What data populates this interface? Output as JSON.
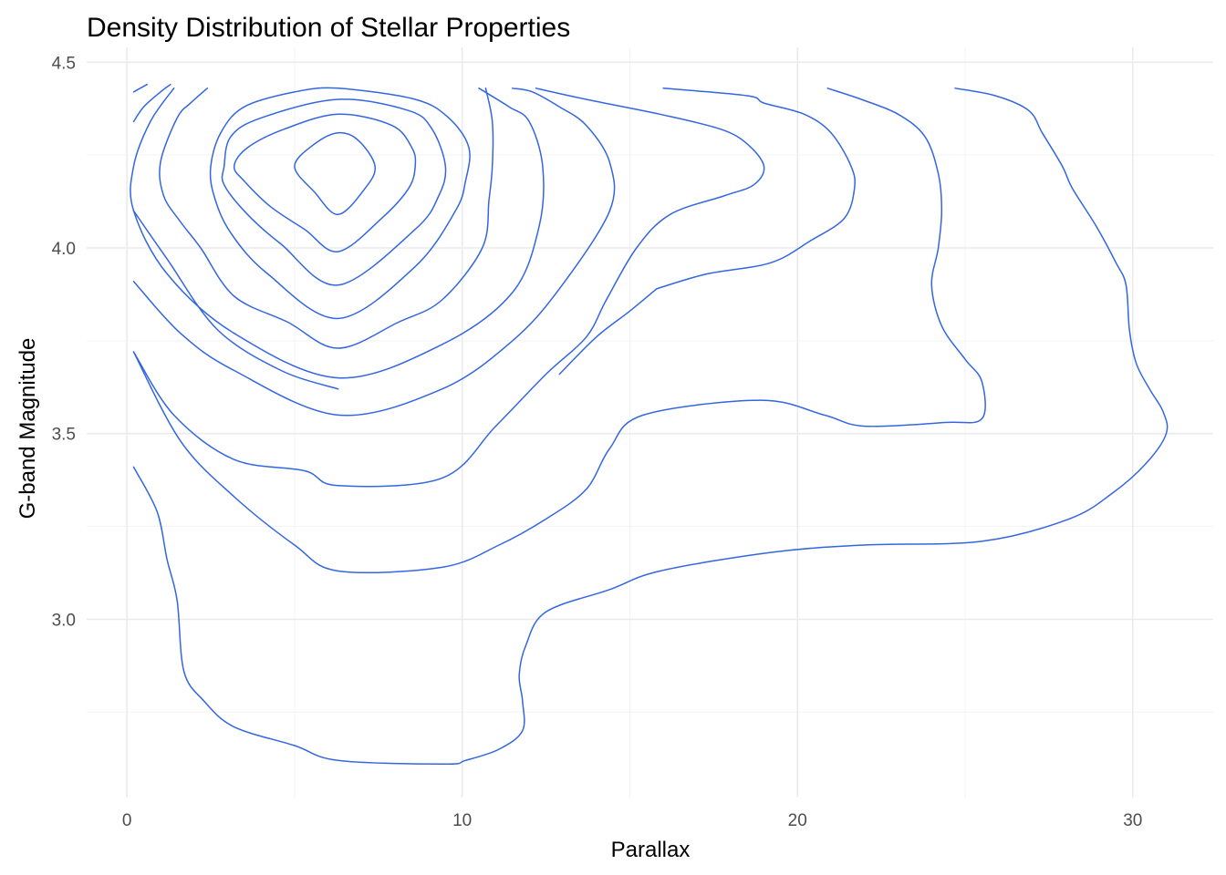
{
  "chart_data": {
    "type": "contour",
    "title": "Density Distribution of Stellar Properties",
    "xlabel": "Parallax",
    "ylabel": "G-band Magnitude",
    "xlim": [
      -1.2,
      32.4
    ],
    "ylim": [
      2.52,
      4.54
    ],
    "x_ticks": [
      0,
      10,
      20,
      30
    ],
    "y_ticks": [
      3.0,
      3.5,
      4.0,
      4.5
    ],
    "x_tick_labels": [
      "0",
      "10",
      "20",
      "30"
    ],
    "y_tick_labels": [
      "3.0",
      "3.5",
      "4.0",
      "4.5"
    ],
    "x_minor": [
      5,
      15,
      25
    ],
    "y_minor": [
      2.75,
      3.25,
      3.75,
      4.25
    ],
    "grid": true,
    "line_color": "#3366e0",
    "series": [
      {
        "closed": true,
        "points": [
          [
            5.0,
            4.22
          ],
          [
            5.6,
            4.28
          ],
          [
            6.3,
            4.31
          ],
          [
            6.9,
            4.29
          ],
          [
            7.4,
            4.22
          ],
          [
            7.1,
            4.16
          ],
          [
            6.3,
            4.09
          ],
          [
            5.6,
            4.15
          ]
        ]
      },
      {
        "closed": true,
        "points": [
          [
            3.2,
            4.22
          ],
          [
            3.6,
            4.27
          ],
          [
            4.7,
            4.32
          ],
          [
            6.3,
            4.36
          ],
          [
            7.9,
            4.33
          ],
          [
            8.5,
            4.27
          ],
          [
            8.6,
            4.22
          ],
          [
            8.4,
            4.16
          ],
          [
            7.6,
            4.08
          ],
          [
            6.3,
            3.99
          ],
          [
            5.3,
            4.05
          ],
          [
            4.3,
            4.11
          ],
          [
            3.5,
            4.18
          ]
        ]
      },
      {
        "closed": true,
        "points": [
          [
            2.9,
            4.22
          ],
          [
            3.1,
            4.3
          ],
          [
            4.0,
            4.35
          ],
          [
            6.3,
            4.4
          ],
          [
            8.4,
            4.37
          ],
          [
            9.1,
            4.32
          ],
          [
            9.5,
            4.22
          ],
          [
            9.3,
            4.14
          ],
          [
            8.6,
            4.05
          ],
          [
            6.3,
            3.9
          ],
          [
            4.6,
            4.01
          ],
          [
            3.6,
            4.09
          ],
          [
            2.9,
            4.17
          ]
        ]
      },
      {
        "closed": true,
        "points": [
          [
            2.5,
            4.22
          ],
          [
            2.8,
            4.31
          ],
          [
            3.5,
            4.38
          ],
          [
            5.0,
            4.42
          ],
          [
            6.3,
            4.43
          ],
          [
            8.6,
            4.4
          ],
          [
            9.6,
            4.35
          ],
          [
            10.2,
            4.27
          ],
          [
            10.1,
            4.18
          ],
          [
            9.8,
            4.1
          ],
          [
            8.6,
            3.95
          ],
          [
            6.3,
            3.81
          ],
          [
            4.2,
            3.93
          ],
          [
            3.1,
            4.04
          ],
          [
            2.6,
            4.14
          ]
        ]
      },
      {
        "closed": false,
        "points": [
          [
            2.4,
            4.43
          ],
          [
            1.9,
            4.39
          ],
          [
            1.5,
            4.35
          ],
          [
            1.0,
            4.23
          ],
          [
            1.1,
            4.14
          ],
          [
            1.6,
            4.07
          ],
          [
            2.2,
            4.0
          ],
          [
            3.2,
            3.87
          ],
          [
            4.8,
            3.8
          ],
          [
            6.3,
            3.73
          ],
          [
            8.1,
            3.8
          ],
          [
            9.4,
            3.86
          ],
          [
            10.6,
            4.0
          ],
          [
            10.8,
            4.13
          ],
          [
            10.9,
            4.22
          ],
          [
            10.9,
            4.34
          ],
          [
            10.7,
            4.43
          ]
        ]
      },
      {
        "closed": false,
        "points": [
          [
            1.4,
            4.43
          ],
          [
            0.7,
            4.34
          ],
          [
            0.2,
            4.22
          ],
          [
            0.2,
            4.1
          ],
          [
            1.2,
            3.93
          ],
          [
            3.2,
            3.77
          ],
          [
            6.3,
            3.65
          ],
          [
            9.4,
            3.74
          ],
          [
            11.5,
            3.88
          ],
          [
            12.3,
            4.06
          ],
          [
            12.4,
            4.22
          ],
          [
            12.0,
            4.34
          ],
          [
            11.4,
            4.38
          ],
          [
            10.5,
            4.43
          ]
        ]
      },
      {
        "closed": false,
        "points": [
          [
            0.6,
            4.44
          ],
          [
            0.2,
            4.42
          ]
        ]
      },
      {
        "closed": false,
        "points": [
          [
            0.2,
            4.34
          ],
          [
            0.5,
            4.38
          ],
          [
            1.0,
            4.42
          ],
          [
            1.3,
            4.44
          ]
        ]
      },
      {
        "closed": false,
        "points": [
          [
            0.2,
            3.91
          ],
          [
            1.6,
            3.77
          ],
          [
            3.2,
            3.67
          ],
          [
            6.3,
            3.55
          ],
          [
            9.4,
            3.62
          ],
          [
            11.5,
            3.75
          ],
          [
            12.9,
            3.89
          ],
          [
            14.4,
            4.1
          ],
          [
            14.4,
            4.23
          ],
          [
            13.7,
            4.33
          ],
          [
            12.9,
            4.38
          ],
          [
            12.1,
            4.42
          ],
          [
            11.5,
            4.43
          ]
        ]
      },
      {
        "closed": false,
        "points": [
          [
            0.2,
            3.72
          ],
          [
            1.4,
            3.55
          ],
          [
            3.2,
            3.43
          ],
          [
            5.3,
            3.4
          ],
          [
            6.3,
            3.36
          ],
          [
            9.4,
            3.38
          ],
          [
            11.0,
            3.52
          ],
          [
            12.5,
            3.66
          ],
          [
            13.7,
            3.76
          ],
          [
            14.3,
            3.86
          ],
          [
            15.2,
            4.0
          ],
          [
            16.2,
            4.09
          ],
          [
            17.8,
            4.14
          ],
          [
            18.7,
            4.17
          ],
          [
            19.0,
            4.22
          ],
          [
            18.5,
            4.28
          ],
          [
            17.7,
            4.32
          ],
          [
            15.9,
            4.36
          ],
          [
            13.7,
            4.4
          ],
          [
            12.2,
            4.43
          ]
        ]
      },
      {
        "closed": false,
        "points": [
          [
            0.2,
            3.41
          ],
          [
            0.9,
            3.29
          ],
          [
            1.2,
            3.16
          ],
          [
            1.5,
            3.05
          ],
          [
            1.7,
            2.86
          ],
          [
            2.3,
            2.78
          ],
          [
            3.2,
            2.71
          ],
          [
            5.0,
            2.66
          ],
          [
            6.3,
            2.62
          ],
          [
            9.5,
            2.61
          ],
          [
            10.1,
            2.62
          ],
          [
            11.1,
            2.65
          ],
          [
            11.8,
            2.7
          ],
          [
            11.8,
            2.78
          ],
          [
            11.7,
            2.85
          ],
          [
            11.9,
            2.93
          ],
          [
            12.5,
            3.02
          ],
          [
            14.4,
            3.08
          ],
          [
            15.9,
            3.13
          ],
          [
            19.2,
            3.18
          ],
          [
            22.0,
            3.2
          ],
          [
            25.5,
            3.21
          ],
          [
            28.1,
            3.27
          ],
          [
            29.4,
            3.34
          ],
          [
            30.4,
            3.42
          ],
          [
            31.0,
            3.5
          ],
          [
            30.9,
            3.56
          ],
          [
            30.5,
            3.62
          ],
          [
            30.1,
            3.69
          ],
          [
            29.9,
            3.78
          ],
          [
            29.8,
            3.9
          ],
          [
            29.5,
            3.96
          ],
          [
            28.9,
            4.06
          ],
          [
            28.2,
            4.16
          ],
          [
            27.9,
            4.22
          ],
          [
            27.3,
            4.31
          ],
          [
            26.9,
            4.37
          ],
          [
            25.9,
            4.41
          ],
          [
            24.7,
            4.43
          ]
        ]
      },
      {
        "closed": false,
        "points": [
          [
            0.2,
            4.1
          ],
          [
            1.2,
            3.97
          ],
          [
            2.7,
            3.78
          ],
          [
            4.6,
            3.67
          ],
          [
            6.3,
            3.62
          ]
        ]
      },
      {
        "closed": false,
        "points": [
          [
            0.2,
            3.72
          ],
          [
            1.6,
            3.48
          ],
          [
            3.2,
            3.33
          ],
          [
            5.0,
            3.2
          ],
          [
            6.3,
            3.13
          ],
          [
            9.4,
            3.14
          ],
          [
            11.1,
            3.2
          ],
          [
            12.5,
            3.27
          ],
          [
            13.7,
            3.35
          ],
          [
            14.4,
            3.46
          ],
          [
            15.4,
            3.55
          ],
          [
            18.9,
            3.59
          ],
          [
            20.8,
            3.55
          ],
          [
            22.0,
            3.52
          ],
          [
            24.4,
            3.53
          ],
          [
            25.5,
            3.54
          ],
          [
            25.5,
            3.64
          ],
          [
            25.0,
            3.7
          ],
          [
            24.3,
            3.79
          ],
          [
            24.0,
            3.9
          ],
          [
            24.2,
            4.0
          ],
          [
            24.3,
            4.1
          ],
          [
            24.2,
            4.2
          ],
          [
            23.8,
            4.3
          ],
          [
            23.0,
            4.36
          ],
          [
            21.9,
            4.4
          ],
          [
            20.9,
            4.43
          ]
        ]
      },
      {
        "closed": false,
        "points": [
          [
            15.8,
            3.89
          ],
          [
            17.3,
            3.93
          ],
          [
            19.2,
            3.96
          ],
          [
            20.4,
            4.02
          ],
          [
            21.4,
            4.08
          ],
          [
            21.7,
            4.16
          ],
          [
            21.6,
            4.22
          ],
          [
            21.0,
            4.31
          ],
          [
            20.2,
            4.36
          ],
          [
            19.0,
            4.39
          ],
          [
            18.5,
            4.41
          ],
          [
            16.0,
            4.43
          ]
        ]
      },
      {
        "closed": false,
        "points": [
          [
            12.9,
            3.66
          ],
          [
            14.0,
            3.76
          ],
          [
            15.0,
            3.83
          ],
          [
            15.8,
            3.89
          ]
        ]
      }
    ]
  }
}
